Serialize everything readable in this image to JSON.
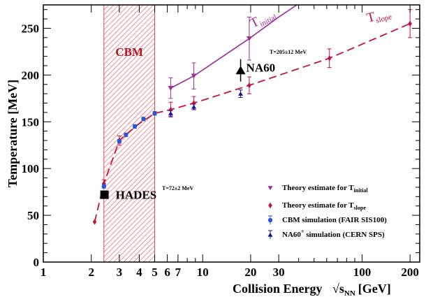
{
  "chart_data": {
    "type": "scatter",
    "xlabel": "Collision Energy",
    "xlabel_math": "√s",
    "xlabel_math_sub": "NN",
    "xlabel_unit": "[GeV]",
    "ylabel": "Temperature [MeV]",
    "x_scale": "log",
    "xlim": [
      1,
      230
    ],
    "ylim": [
      0,
      275
    ],
    "x_ticks_major": [
      1,
      2,
      3,
      4,
      5,
      6,
      7,
      10,
      20,
      30,
      100,
      200
    ],
    "x_tick_labels": [
      "1",
      "2",
      "3",
      "4",
      "5",
      "6",
      "7",
      "10",
      "20",
      "30",
      "100",
      "200"
    ],
    "x_ticks_minor": [
      8,
      9,
      40,
      50,
      60,
      70,
      80,
      90
    ],
    "y_ticks": [
      0,
      50,
      100,
      150,
      200,
      250
    ],
    "y_tick_labels": [
      "0",
      "50",
      "100",
      "150",
      "200",
      "250"
    ],
    "grid": false,
    "legend_placement": "bottom-right",
    "cbm_band": {
      "label": "CBM",
      "x_range": [
        2.4,
        5.0
      ],
      "color": "#e04a4a"
    },
    "series": [
      {
        "key": "initial",
        "name": "Theory estimate for T",
        "name_sub": "initial",
        "curve_label": "T",
        "curve_label_sub": "initial",
        "color": "#9b2d9b",
        "marker": "triangle-down",
        "points": [
          {
            "x": 6.3,
            "y": 186,
            "yerr": 11
          },
          {
            "x": 8.8,
            "y": 199,
            "yerr": 14
          },
          {
            "x": 19.6,
            "y": 239,
            "yerr": 23
          }
        ],
        "curve": [
          [
            6.3,
            186
          ],
          [
            8.8,
            199
          ],
          [
            19.6,
            239
          ],
          [
            30,
            262
          ],
          [
            39,
            275
          ]
        ]
      },
      {
        "key": "slope",
        "name": "Theory estimate for T",
        "name_sub": "slope",
        "curve_label": "T",
        "curve_label_sub": "slope",
        "color": "#c4143c",
        "marker": "diamond",
        "points": [
          {
            "x": 2.1,
            "y": 43,
            "yerr": 0
          },
          {
            "x": 2.4,
            "y": 84,
            "yerr": 4
          },
          {
            "x": 3.0,
            "y": 130,
            "yerr": 5
          },
          {
            "x": 6.3,
            "y": 163,
            "yerr": 8
          },
          {
            "x": 8.8,
            "y": 170,
            "yerr": 7
          },
          {
            "x": 19.6,
            "y": 189,
            "yerr": 9
          },
          {
            "x": 62.4,
            "y": 218,
            "yerr": 10
          },
          {
            "x": 200,
            "y": 255,
            "yerr": 15
          }
        ],
        "curve": [
          [
            2.1,
            43
          ],
          [
            2.4,
            84
          ],
          [
            3.0,
            130
          ],
          [
            3.5,
            140
          ],
          [
            4.0,
            148
          ],
          [
            5.0,
            159
          ],
          [
            6.3,
            163
          ],
          [
            8.8,
            170
          ],
          [
            19.6,
            189
          ],
          [
            62.4,
            218
          ],
          [
            200,
            255
          ]
        ]
      },
      {
        "key": "cbm",
        "name": "CBM simulation (FAIR SIS100)",
        "color": "#2a55d8",
        "marker": "circle",
        "points": [
          {
            "x": 2.4,
            "y": 81,
            "yerr": 2
          },
          {
            "x": 3.0,
            "y": 129,
            "yerr": 2
          },
          {
            "x": 3.3,
            "y": 136,
            "yerr": 2
          },
          {
            "x": 3.75,
            "y": 145,
            "yerr": 2
          },
          {
            "x": 4.25,
            "y": 153,
            "yerr": 2
          },
          {
            "x": 5.0,
            "y": 159,
            "yerr": 2
          }
        ]
      },
      {
        "key": "na60sim",
        "name": "NA60",
        "name_sup": "+",
        "name_rest": " simulation (CERN SPS)",
        "color": "#141496",
        "marker": "triangle-up",
        "points": [
          {
            "x": 6.3,
            "y": 159,
            "yerr": 3
          },
          {
            "x": 8.8,
            "y": 166,
            "yerr": 3
          },
          {
            "x": 17.3,
            "y": 180,
            "yerr": 4
          }
        ]
      }
    ],
    "measurements": [
      {
        "key": "na60",
        "label": "NA60",
        "note": "T=205±12 MeV",
        "x": 17.3,
        "y": 205,
        "yerr": 12,
        "marker": "triangle-up",
        "color": "#000000"
      },
      {
        "key": "hades",
        "label": "HADES",
        "note": "T=72±2 MeV",
        "x": 2.42,
        "y": 72,
        "yerr": 2,
        "marker": "square",
        "color": "#000000"
      }
    ]
  }
}
